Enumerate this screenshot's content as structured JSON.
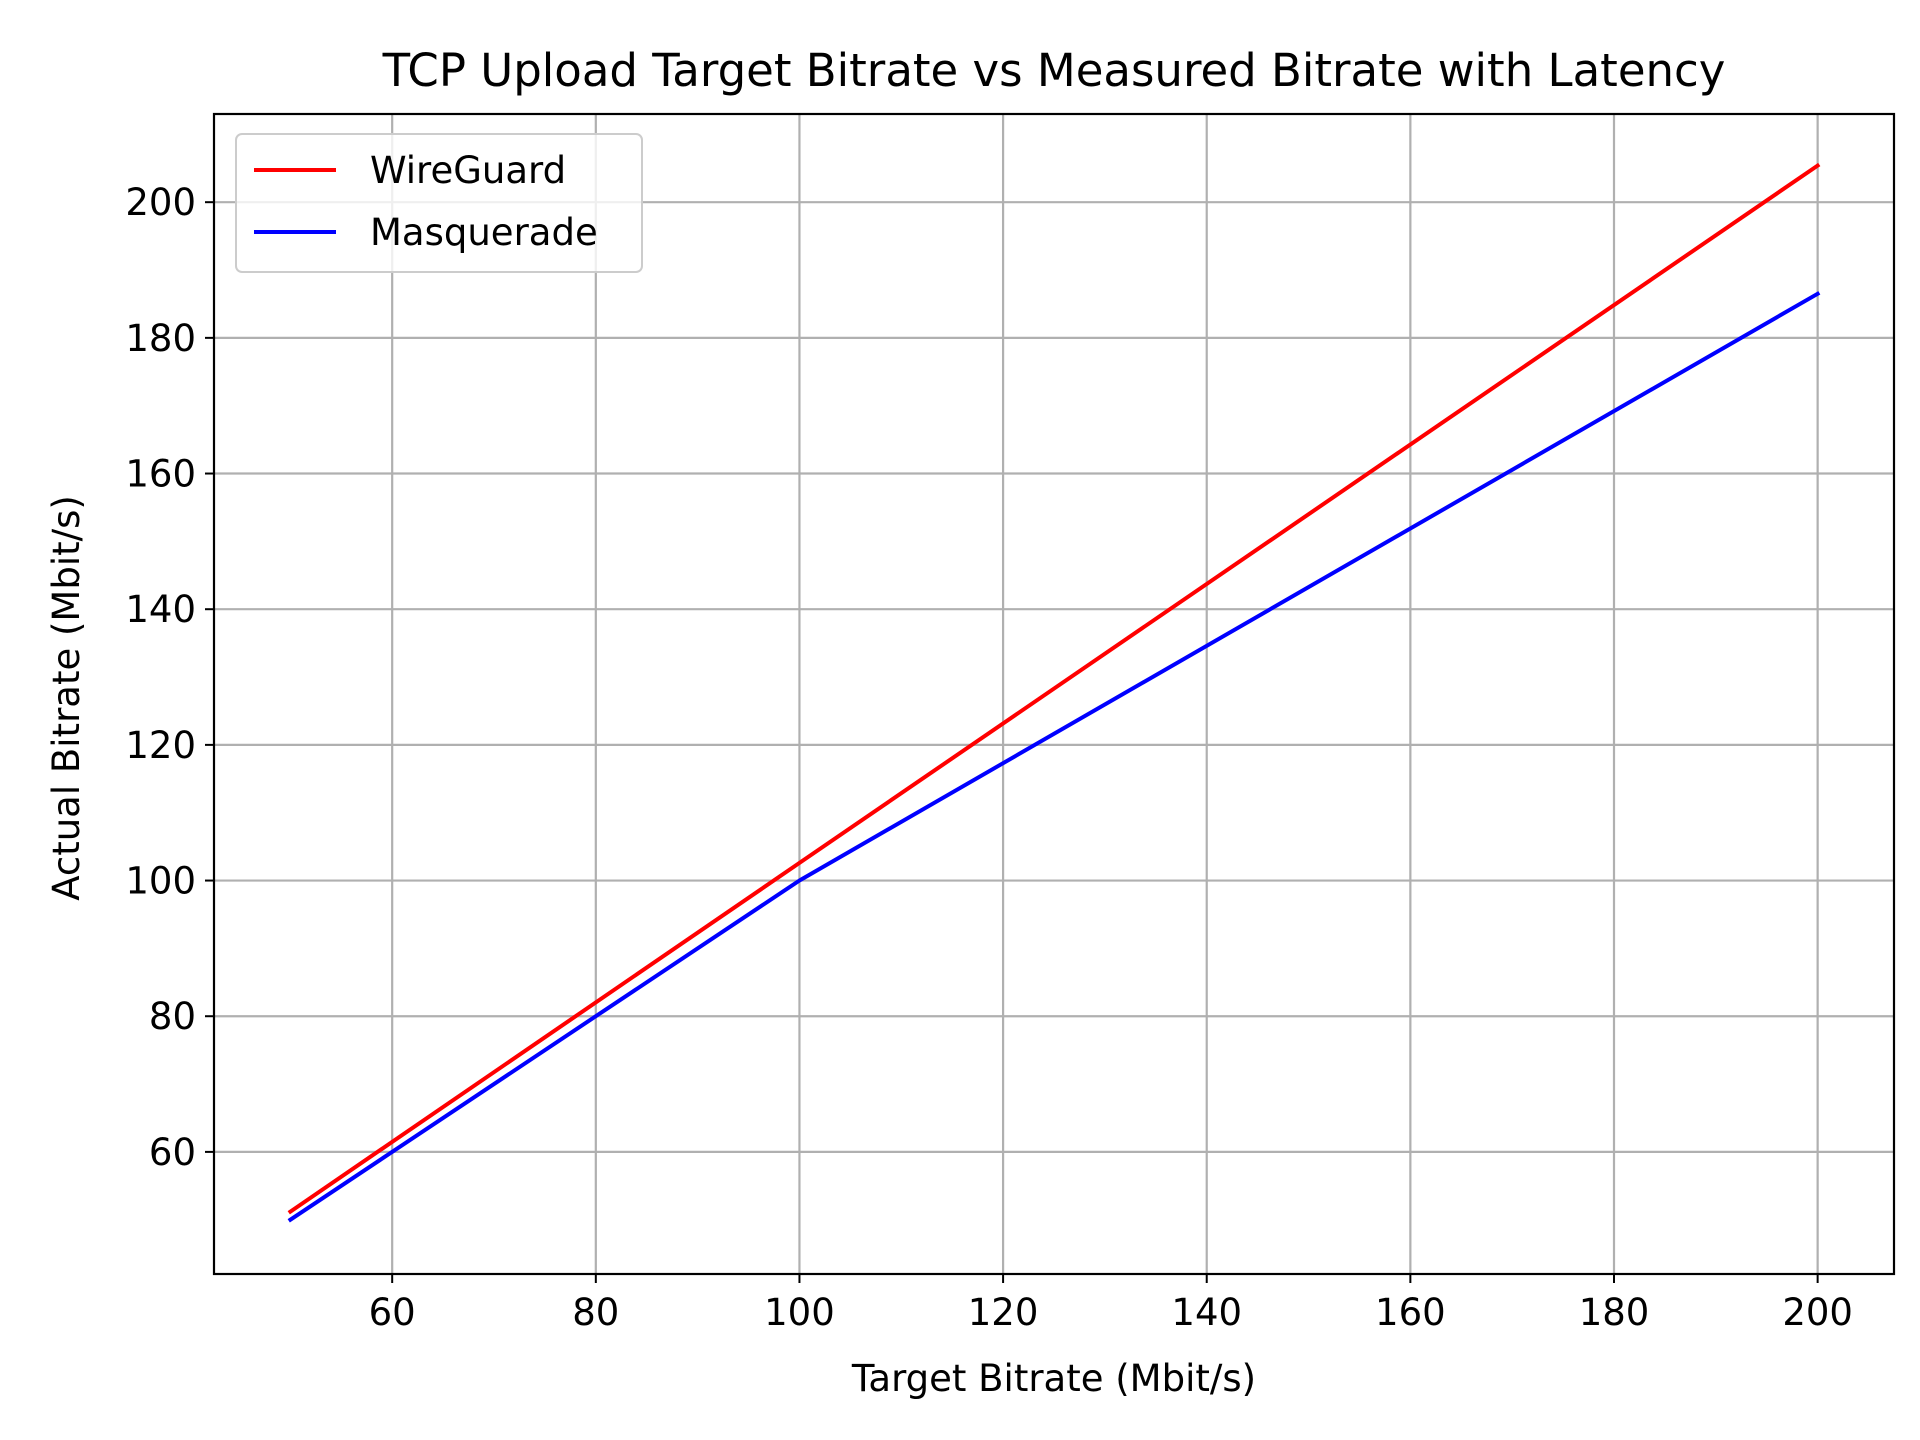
{
  "chart_data": {
    "type": "line",
    "title": "TCP Upload Target Bitrate vs Measured Bitrate with Latency",
    "xlabel": "Target Bitrate (Mbit/s)",
    "ylabel": "Actual Bitrate (Mbit/s)",
    "xlim": [
      42.5,
      207.5
    ],
    "ylim": [
      42,
      213
    ],
    "xticks": [
      60,
      80,
      100,
      120,
      140,
      160,
      180,
      200
    ],
    "yticks": [
      60,
      80,
      100,
      120,
      140,
      160,
      180,
      200
    ],
    "grid": true,
    "legend_position": "upper-left",
    "series": [
      {
        "name": "WireGuard",
        "color": "#ff0000",
        "x": [
          50,
          100,
          200
        ],
        "y": [
          51.2,
          102.6,
          205.4
        ]
      },
      {
        "name": "Masquerade",
        "color": "#0000ff",
        "x": [
          50,
          100,
          200
        ],
        "y": [
          50.0,
          100.0,
          186.5
        ]
      }
    ]
  }
}
